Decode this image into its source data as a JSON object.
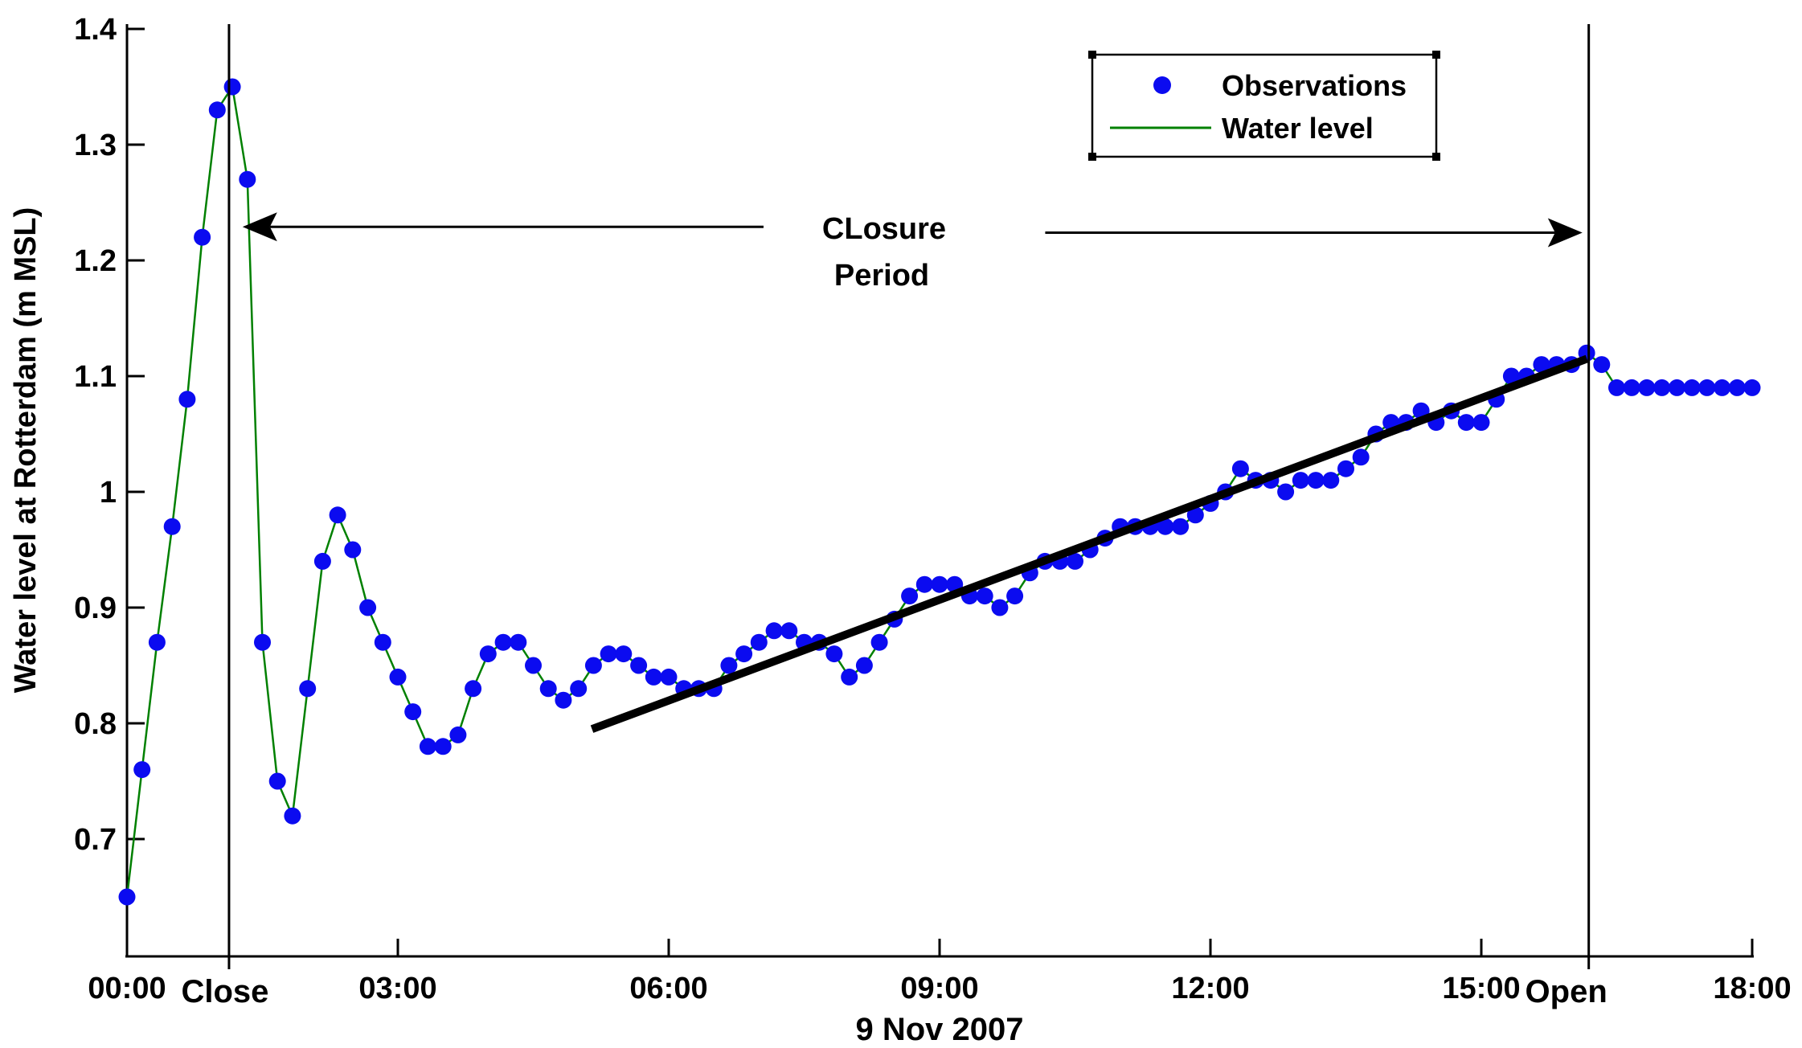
{
  "figure": {
    "background_color": "#ffffff",
    "ylabel": "Water level at Rotterdam (m MSL)",
    "xlabel_date": "9 Nov 2007",
    "event_labels": {
      "close": "Close",
      "open": "Open"
    },
    "closure_annotation": {
      "line1": "CLosure",
      "line2": "Period"
    },
    "legend": {
      "items": [
        {
          "label": "Observations",
          "marker": "dot",
          "color": "#0b0bf0"
        },
        {
          "label": "Water level",
          "marker": "line",
          "color": "#008000"
        }
      ]
    }
  },
  "chart_data": {
    "type": "scatter",
    "title": "",
    "xlabel": "9 Nov 2007",
    "ylabel": "Water level at Rotterdam (m MSL)",
    "xlim_hours": [
      0,
      18
    ],
    "ylim": [
      0.6,
      1.4
    ],
    "grid": false,
    "legend_position": "top-right-inside",
    "x_ticks": [
      {
        "h": 0,
        "label": "00:00"
      },
      {
        "h": 3,
        "label": "03:00"
      },
      {
        "h": 6,
        "label": "06:00"
      },
      {
        "h": 9,
        "label": "09:00"
      },
      {
        "h": 12,
        "label": "12:00"
      },
      {
        "h": 15,
        "label": "15:00"
      },
      {
        "h": 18,
        "label": "18:00"
      }
    ],
    "y_ticks": [
      {
        "v": 0.7,
        "label": "0.7"
      },
      {
        "v": 0.8,
        "label": "0.8"
      },
      {
        "v": 0.9,
        "label": "0.9"
      },
      {
        "v": 1.0,
        "label": "1"
      },
      {
        "v": 1.1,
        "label": "1.1"
      },
      {
        "v": 1.2,
        "label": "1.2"
      },
      {
        "v": 1.3,
        "label": "1.3"
      },
      {
        "v": 1.4,
        "label": "1.4"
      }
    ],
    "series": [
      {
        "name": "Observations",
        "marker": "dot",
        "color": "#0b0bf0",
        "start_time": "00:00",
        "interval_minutes": 10,
        "values": [
          0.65,
          0.76,
          0.87,
          0.97,
          1.08,
          1.22,
          1.33,
          1.35,
          1.27,
          0.87,
          0.75,
          0.72,
          0.83,
          0.94,
          0.98,
          0.95,
          0.9,
          0.87,
          0.84,
          0.81,
          0.78,
          0.78,
          0.79,
          0.83,
          0.86,
          0.87,
          0.87,
          0.85,
          0.83,
          0.82,
          0.83,
          0.85,
          0.86,
          0.86,
          0.85,
          0.84,
          0.84,
          0.83,
          0.83,
          0.83,
          0.85,
          0.86,
          0.87,
          0.88,
          0.88,
          0.87,
          0.87,
          0.86,
          0.84,
          0.85,
          0.87,
          0.89,
          0.91,
          0.92,
          0.92,
          0.92,
          0.91,
          0.91,
          0.9,
          0.91,
          0.93,
          0.94,
          0.94,
          0.94,
          0.95,
          0.96,
          0.97,
          0.97,
          0.97,
          0.97,
          0.97,
          0.98,
          0.99,
          1.0,
          1.02,
          1.01,
          1.01,
          1.0,
          1.01,
          1.01,
          1.01,
          1.02,
          1.03,
          1.05,
          1.06,
          1.06,
          1.07,
          1.06,
          1.07,
          1.06,
          1.06,
          1.08,
          1.1,
          1.1,
          1.11,
          1.11,
          1.11,
          1.12,
          1.11,
          1.09,
          1.09,
          1.09,
          1.09,
          1.09,
          1.09,
          1.09,
          1.09,
          1.09,
          1.09
        ]
      },
      {
        "name": "Water level",
        "marker": "line",
        "color": "#008000",
        "note": "green line connects the same observation values"
      }
    ],
    "trend_line": {
      "color": "#000000",
      "from": {
        "t": 5.15,
        "v": 0.795
      },
      "to": {
        "t": 16.17,
        "v": 1.115
      }
    },
    "event_lines": [
      {
        "name": "close",
        "label": "Close",
        "t": 1.13
      },
      {
        "name": "open",
        "label": "Open",
        "t": 16.19
      }
    ],
    "arrows": [
      {
        "dir": "left",
        "v": 1.229,
        "t_tail": 7.05,
        "t_tip": 1.28
      },
      {
        "dir": "right",
        "v": 1.224,
        "t_tail": 10.17,
        "t_tip": 16.12
      }
    ],
    "closure_text_t": 8.39,
    "colors": {
      "observations": "#0b0bf0",
      "water_level": "#008000",
      "trend": "#000000",
      "axis": "#000000"
    }
  }
}
